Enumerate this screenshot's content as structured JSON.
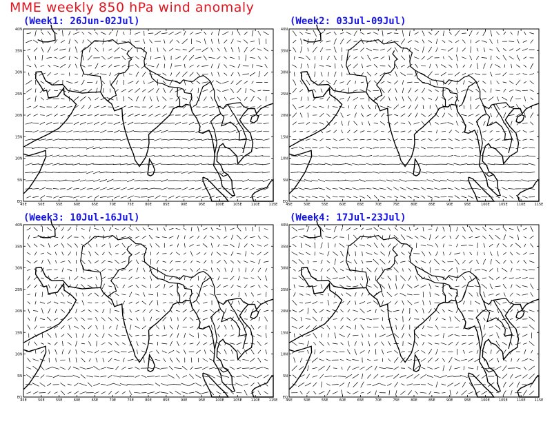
{
  "title": "MME weekly 850 hPa wind anomaly",
  "axes": {
    "lon_labels": [
      "45E",
      "50E",
      "55E",
      "60E",
      "65E",
      "70E",
      "75E",
      "80E",
      "85E",
      "90E",
      "95E",
      "100E",
      "105E",
      "110E",
      "115E"
    ],
    "lat_labels": [
      "EQ",
      "5N",
      "10N",
      "15N",
      "20N",
      "25N",
      "30N",
      "35N",
      "40N"
    ],
    "lon_range": [
      45,
      115
    ],
    "lat_range": [
      0,
      40
    ]
  },
  "panels": [
    {
      "label": "(Week1: 26Jun-02Jul)",
      "flow": "strong-westerly"
    },
    {
      "label": "(Week2: 03Jul-09Jul)",
      "flow": "moderate-westerly"
    },
    {
      "label": "(Week3: 10Jul-16Jul)",
      "flow": "weak-mixed"
    },
    {
      "label": "(Week4: 17Jul-23Jul)",
      "flow": "weak-mixed-easterly"
    }
  ],
  "colors": {
    "title": "#e0141e",
    "panel_title": "#1414e6",
    "coast": "#000000",
    "vectors": "#000000"
  }
}
